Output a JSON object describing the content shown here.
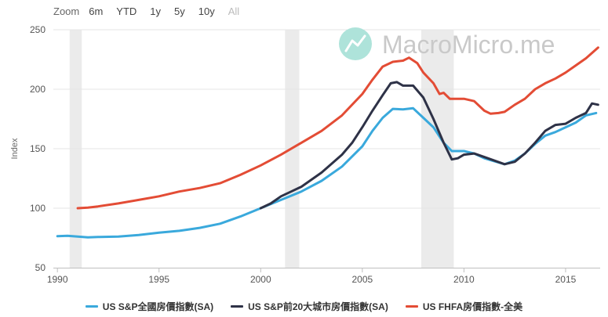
{
  "range_selector": {
    "label": "Zoom",
    "buttons": [
      "6m",
      "YTD",
      "1y",
      "5y",
      "10y",
      "All"
    ],
    "disabled": "All"
  },
  "watermark": "MacroMicro.me",
  "colors": {
    "series_sp_national": "#3aa9dc",
    "series_sp_20city": "#2e3247",
    "series_fhfa": "#e34c35",
    "recession_band": "#ebebeb",
    "gridline": "#e6e6e6",
    "watermark_icon": "#aee3da"
  },
  "chart_data": {
    "type": "line",
    "ylabel": "Index",
    "xlim": [
      1989.8,
      2016.7
    ],
    "ylim": [
      50,
      250
    ],
    "yticks": [
      50,
      100,
      150,
      200,
      250
    ],
    "xticks": [
      1990,
      1995,
      2000,
      2005,
      2010,
      2015
    ],
    "grid": true,
    "legend_position": "bottom-center",
    "recession_bands": [
      [
        1990.6,
        1991.2
      ],
      [
        2001.2,
        2001.9
      ],
      [
        2007.9,
        2009.5
      ]
    ],
    "series": [
      {
        "name": "US S&P全國房價指數(SA)",
        "color": "#3aa9dc",
        "points": [
          [
            1990.0,
            76.5
          ],
          [
            1990.5,
            76.8
          ],
          [
            1991.0,
            76.2
          ],
          [
            1991.5,
            75.5
          ],
          [
            1992.0,
            75.8
          ],
          [
            1993.0,
            76.2
          ],
          [
            1994.0,
            77.5
          ],
          [
            1995.0,
            79.5
          ],
          [
            1996.0,
            81.0
          ],
          [
            1997.0,
            83.5
          ],
          [
            1998.0,
            87.0
          ],
          [
            1999.0,
            93.0
          ],
          [
            2000.0,
            100.0
          ],
          [
            2001.0,
            107.0
          ],
          [
            2002.0,
            114.0
          ],
          [
            2003.0,
            123.0
          ],
          [
            2004.0,
            135.0
          ],
          [
            2005.0,
            152.0
          ],
          [
            2005.5,
            165.0
          ],
          [
            2006.0,
            176.0
          ],
          [
            2006.5,
            183.5
          ],
          [
            2007.0,
            183.0
          ],
          [
            2007.5,
            184.0
          ],
          [
            2008.0,
            176.0
          ],
          [
            2008.5,
            168.0
          ],
          [
            2009.0,
            155.0
          ],
          [
            2009.4,
            148.0
          ],
          [
            2010.0,
            148.0
          ],
          [
            2010.5,
            146.0
          ],
          [
            2011.0,
            142.0
          ],
          [
            2011.5,
            139.5
          ],
          [
            2012.0,
            137.0
          ],
          [
            2012.5,
            140.0
          ],
          [
            2013.0,
            146.0
          ],
          [
            2013.5,
            154.0
          ],
          [
            2014.0,
            161.0
          ],
          [
            2014.5,
            164.0
          ],
          [
            2015.0,
            168.0
          ],
          [
            2015.5,
            172.0
          ],
          [
            2016.0,
            178.0
          ],
          [
            2016.5,
            180.0
          ]
        ]
      },
      {
        "name": "US S&P前20大城市房價指數(SA)",
        "color": "#2e3247",
        "points": [
          [
            2000.0,
            100.0
          ],
          [
            2000.5,
            104.0
          ],
          [
            2001.0,
            110.0
          ],
          [
            2001.5,
            114.0
          ],
          [
            2002.0,
            118.0
          ],
          [
            2003.0,
            130.0
          ],
          [
            2004.0,
            145.0
          ],
          [
            2004.5,
            155.0
          ],
          [
            2005.0,
            168.0
          ],
          [
            2005.5,
            182.0
          ],
          [
            2006.0,
            195.0
          ],
          [
            2006.4,
            205.0
          ],
          [
            2006.7,
            206.0
          ],
          [
            2007.0,
            203.0
          ],
          [
            2007.5,
            203.0
          ],
          [
            2008.0,
            193.0
          ],
          [
            2008.5,
            175.0
          ],
          [
            2009.0,
            155.0
          ],
          [
            2009.4,
            141.0
          ],
          [
            2009.7,
            142.0
          ],
          [
            2010.0,
            145.0
          ],
          [
            2010.5,
            146.0
          ],
          [
            2011.0,
            143.0
          ],
          [
            2011.5,
            140.0
          ],
          [
            2012.0,
            137.0
          ],
          [
            2012.5,
            139.0
          ],
          [
            2013.0,
            146.0
          ],
          [
            2013.5,
            155.0
          ],
          [
            2014.0,
            165.0
          ],
          [
            2014.5,
            170.0
          ],
          [
            2015.0,
            171.0
          ],
          [
            2015.5,
            176.0
          ],
          [
            2016.0,
            180.0
          ],
          [
            2016.3,
            188.0
          ],
          [
            2016.6,
            187.0
          ]
        ]
      },
      {
        "name": "US FHFA房價指數-全美",
        "color": "#e34c35",
        "points": [
          [
            1991.0,
            100.0
          ],
          [
            1991.5,
            100.5
          ],
          [
            1992.0,
            101.5
          ],
          [
            1993.0,
            104.0
          ],
          [
            1994.0,
            107.0
          ],
          [
            1995.0,
            110.0
          ],
          [
            1996.0,
            114.0
          ],
          [
            1997.0,
            117.0
          ],
          [
            1998.0,
            121.0
          ],
          [
            1999.0,
            128.0
          ],
          [
            2000.0,
            136.0
          ],
          [
            2001.0,
            145.0
          ],
          [
            2002.0,
            155.0
          ],
          [
            2003.0,
            165.0
          ],
          [
            2004.0,
            178.0
          ],
          [
            2005.0,
            196.0
          ],
          [
            2005.5,
            208.0
          ],
          [
            2006.0,
            219.0
          ],
          [
            2006.5,
            223.0
          ],
          [
            2007.0,
            224.0
          ],
          [
            2007.3,
            226.5
          ],
          [
            2007.7,
            222.0
          ],
          [
            2008.0,
            214.0
          ],
          [
            2008.5,
            205.0
          ],
          [
            2008.8,
            196.0
          ],
          [
            2009.0,
            197.0
          ],
          [
            2009.3,
            192.0
          ],
          [
            2010.0,
            192.0
          ],
          [
            2010.5,
            190.0
          ],
          [
            2011.0,
            182.0
          ],
          [
            2011.3,
            179.5
          ],
          [
            2011.7,
            180.0
          ],
          [
            2012.0,
            181.0
          ],
          [
            2012.5,
            187.0
          ],
          [
            2013.0,
            192.0
          ],
          [
            2013.5,
            200.0
          ],
          [
            2014.0,
            205.0
          ],
          [
            2014.5,
            209.0
          ],
          [
            2015.0,
            214.0
          ],
          [
            2015.5,
            220.0
          ],
          [
            2016.0,
            226.0
          ],
          [
            2016.6,
            235.0
          ]
        ]
      }
    ]
  }
}
